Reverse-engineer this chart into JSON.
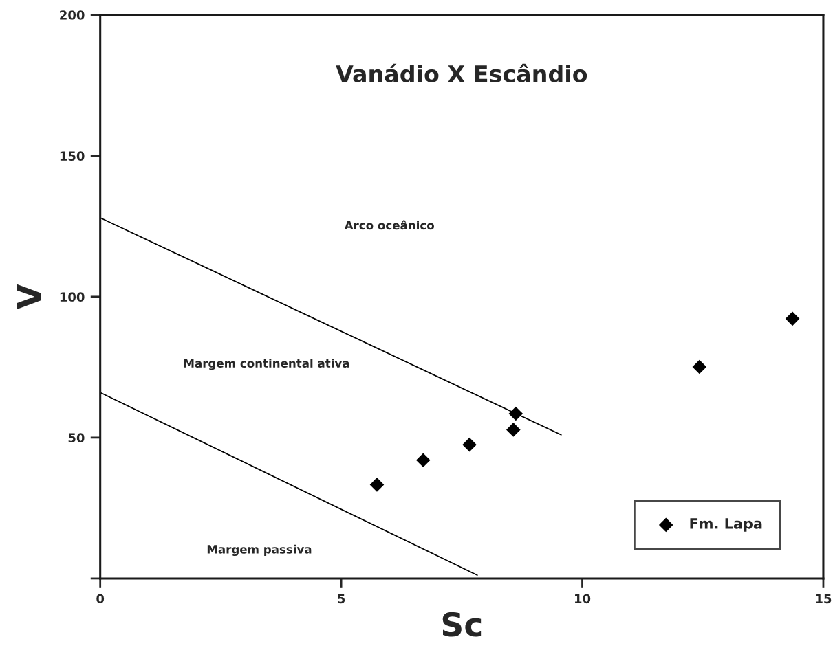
{
  "chart_data": {
    "type": "scatter",
    "title": "Vanádio X Escândio",
    "xlabel": "Sc",
    "ylabel": "V",
    "xlim": [
      0,
      15
    ],
    "ylim": [
      0,
      200
    ],
    "xticks": [
      0,
      5,
      10,
      15
    ],
    "yticks": [
      {
        "value": 0,
        "label": null
      },
      50,
      100,
      150,
      200
    ],
    "grid": false,
    "legend": "bottom right",
    "series": [
      {
        "name": "Fm. Lapa",
        "color": "#000000",
        "marker": "diamond",
        "x": [
          5.74,
          6.7,
          7.66,
          8.57,
          8.62,
          12.43,
          14.36
        ],
        "values": [
          33.3,
          42.0,
          47.5,
          52.8,
          58.5,
          75.1,
          92.2
        ]
      },
      {
        "type": "line",
        "color": "#000000",
        "marker": "none",
        "x": [
          0,
          9.56
        ],
        "values": [
          128,
          51
        ]
      },
      {
        "type": "line",
        "color": "#000000",
        "marker": "none",
        "x": [
          0,
          7.82
        ],
        "values": [
          66,
          1.2
        ]
      }
    ],
    "annotations": [
      "Arco oceânico",
      "Margem continental ativa",
      "Margem passiva"
    ]
  }
}
